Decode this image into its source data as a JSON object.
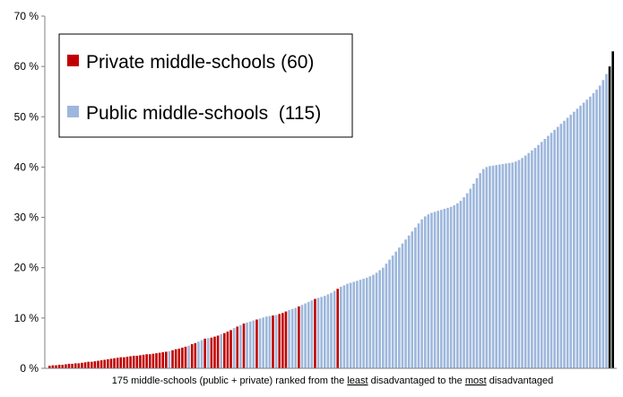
{
  "chart_data": {
    "type": "bar",
    "xlabel_parts": [
      "175 middle-schools (public + private) ranked from the ",
      "least",
      " disadvantaged to the ",
      "most",
      " disadvantaged"
    ],
    "ylim": [
      0,
      70
    ],
    "yticks": [
      0,
      10,
      20,
      30,
      40,
      50,
      60,
      70
    ],
    "ytick_labels": [
      "0 %",
      "10 %",
      "20 %",
      "30 %",
      "40 %",
      "50 %",
      "60 %",
      "70 %"
    ],
    "grid": false,
    "legend_position": "top-left",
    "series": [
      {
        "name": "Private middle-schools (60)",
        "key": "private",
        "color": "#c00000"
      },
      {
        "name": "Public middle-schools  (115)",
        "key": "public",
        "color": "#9db7dc"
      }
    ],
    "school_type": [
      "private",
      "private",
      "private",
      "private",
      "private",
      "private",
      "private",
      "private",
      "private",
      "private",
      "private",
      "private",
      "private",
      "private",
      "private",
      "private",
      "private",
      "private",
      "private",
      "private",
      "private",
      "private",
      "private",
      "private",
      "private",
      "private",
      "private",
      "private",
      "private",
      "private",
      "private",
      "private",
      "private",
      "private",
      "private",
      "private",
      "private",
      "public",
      "private",
      "private",
      "private",
      "private",
      "private",
      "public",
      "private",
      "private",
      "public",
      "public",
      "private",
      "public",
      "private",
      "private",
      "private",
      "public",
      "private",
      "private",
      "private",
      "public",
      "private",
      "public",
      "private",
      "public",
      "public",
      "public",
      "private",
      "public",
      "public",
      "public",
      "public",
      "private",
      "public",
      "private",
      "private",
      "private",
      "public",
      "public",
      "public",
      "private",
      "public",
      "public",
      "public",
      "public",
      "private",
      "public",
      "public",
      "public",
      "public",
      "public",
      "public",
      "private",
      "public",
      "public",
      "public",
      "public",
      "public",
      "public",
      "public",
      "public",
      "public",
      "public",
      "public",
      "public",
      "public",
      "public",
      "public",
      "public",
      "public",
      "public",
      "public",
      "public",
      "public",
      "public",
      "public",
      "public",
      "public",
      "public",
      "public",
      "public",
      "public",
      "public",
      "public",
      "public",
      "public",
      "public",
      "public",
      "public",
      "public",
      "public",
      "public",
      "public",
      "public",
      "public",
      "public",
      "public",
      "public",
      "public",
      "public",
      "public",
      "public",
      "public",
      "public",
      "public",
      "public",
      "public",
      "public",
      "public",
      "public",
      "public",
      "public",
      "public",
      "public",
      "public",
      "public",
      "public",
      "public",
      "public",
      "public",
      "public",
      "public",
      "public",
      "public",
      "public",
      "public",
      "public",
      "public",
      "public",
      "public",
      "public",
      "public",
      "public",
      "public",
      "public",
      "public"
    ],
    "values": [
      0.5,
      0.6,
      0.6,
      0.7,
      0.7,
      0.8,
      0.9,
      0.9,
      1.0,
      1.0,
      1.1,
      1.2,
      1.3,
      1.3,
      1.4,
      1.5,
      1.6,
      1.7,
      1.8,
      1.9,
      2.0,
      2.1,
      2.2,
      2.2,
      2.3,
      2.4,
      2.5,
      2.5,
      2.6,
      2.7,
      2.8,
      2.8,
      2.9,
      3.0,
      3.1,
      3.2,
      3.3,
      3.4,
      3.6,
      3.8,
      3.9,
      4.1,
      4.3,
      4.5,
      4.8,
      5.0,
      5.3,
      5.6,
      5.9,
      6.0,
      6.1,
      6.3,
      6.5,
      6.8,
      7.0,
      7.3,
      7.6,
      8.0,
      8.3,
      8.6,
      8.9,
      9.1,
      9.3,
      9.5,
      9.7,
      9.9,
      10.1,
      10.3,
      10.4,
      10.5,
      10.6,
      10.8,
      11.0,
      11.3,
      11.6,
      11.8,
      12.0,
      12.3,
      12.6,
      12.9,
      13.2,
      13.5,
      13.8,
      14.0,
      14.2,
      14.4,
      14.7,
      15.0,
      15.4,
      15.8,
      16.2,
      16.5,
      16.8,
      17.0,
      17.2,
      17.4,
      17.6,
      17.8,
      18.0,
      18.3,
      18.6,
      19.0,
      19.5,
      20.0,
      20.8,
      21.6,
      22.4,
      23.2,
      24.0,
      24.8,
      25.6,
      26.4,
      27.2,
      28.0,
      28.8,
      29.6,
      30.2,
      30.6,
      30.9,
      31.1,
      31.3,
      31.5,
      31.7,
      31.9,
      32.1,
      32.4,
      32.8,
      33.3,
      34.0,
      34.8,
      35.7,
      36.7,
      37.8,
      38.8,
      39.6,
      40.0,
      40.2,
      40.3,
      40.4,
      40.5,
      40.6,
      40.7,
      40.8,
      40.9,
      41.1,
      41.4,
      41.8,
      42.3,
      42.8,
      43.3,
      43.8,
      44.4,
      45.0,
      45.6,
      46.2,
      46.8,
      47.4,
      48.0,
      48.6,
      49.2,
      49.8,
      50.4,
      51.0,
      51.6,
      52.2,
      52.8,
      53.4,
      54.0,
      54.7,
      55.4,
      56.2,
      57.3,
      58.5,
      60.0,
      63.0
    ]
  }
}
